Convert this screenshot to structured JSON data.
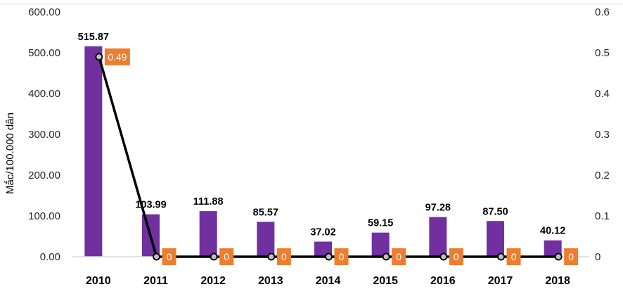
{
  "chart_data": {
    "type": "bar",
    "categories": [
      "2010",
      "2011",
      "2012",
      "2013",
      "2014",
      "2015",
      "2016",
      "2017",
      "2018"
    ],
    "series": [
      {
        "kind": "bar",
        "axis": "left",
        "values": [
          515.87,
          103.99,
          111.88,
          85.57,
          37.02,
          59.15,
          97.28,
          87.5,
          40.12
        ],
        "labels": [
          "515.87",
          "103.99",
          "111.88",
          "85.57",
          "37.02",
          "59.15",
          "97.28",
          "87.50",
          "40.12"
        ],
        "color": "#7030a0"
      },
      {
        "kind": "line",
        "axis": "right",
        "values": [
          0.49,
          0,
          0,
          0,
          0,
          0,
          0,
          0,
          0
        ],
        "labels": [
          "0.49",
          "0",
          "0",
          "0",
          "0",
          "0",
          "0",
          "0",
          "0"
        ],
        "color": "#000000",
        "label_box_color": "#ed7d31"
      }
    ],
    "ylabel": "Mắc/100.000 dân",
    "ylim": [
      0,
      600
    ],
    "y_ticks": [
      "0.00",
      "100.00",
      "200.00",
      "300.00",
      "400.00",
      "500.00",
      "600.00"
    ],
    "y2lim": [
      0,
      0.6
    ],
    "y2_ticks": [
      "0",
      "0.1",
      "0.2",
      "0.3",
      "0.4",
      "0.5",
      "0.6"
    ],
    "grid": false
  }
}
